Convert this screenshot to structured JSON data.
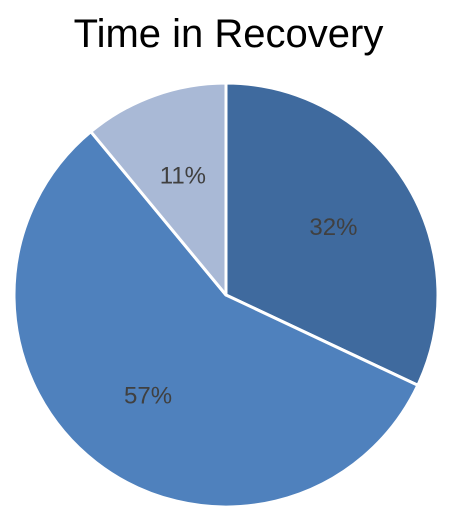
{
  "chart_data": {
    "type": "pie",
    "title": "Time in Recovery",
    "categories": [
      "",
      "",
      ""
    ],
    "values": [
      32,
      57,
      11
    ],
    "labels": [
      "32%",
      "57%",
      "11%"
    ],
    "colors": [
      "#3f6a9e",
      "#4f81bd",
      "#a9b9d6"
    ],
    "start_angle_deg": 0,
    "direction": "clockwise",
    "legend": "none"
  }
}
